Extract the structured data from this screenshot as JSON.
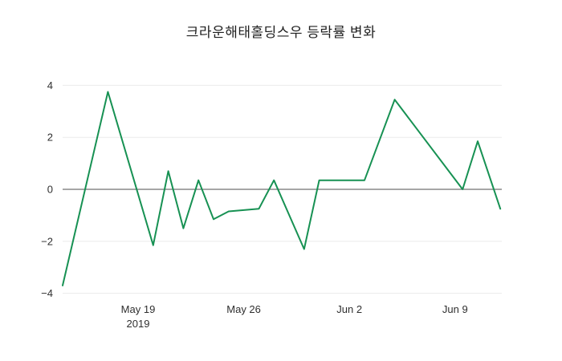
{
  "page": {
    "background": "#ffffff"
  },
  "chart_data": {
    "type": "line",
    "title": "크라운해태홀딩스우 등락률 변화",
    "legend": "none",
    "grid": "horizontal-only",
    "colors": {
      "grid": "#ebebeb",
      "zeroline": "#4d4d4d",
      "tick_text": "#2f2f2f",
      "title_text": "#1f1f1f"
    },
    "x_axis": {
      "label": "",
      "ticks": [
        {
          "pos": 5,
          "label": "May 19",
          "sublabel": "2019"
        },
        {
          "pos": 12,
          "label": "May 26",
          "sublabel": ""
        },
        {
          "pos": 19,
          "label": "Jun 2",
          "sublabel": ""
        },
        {
          "pos": 26,
          "label": "Jun 9",
          "sublabel": ""
        }
      ],
      "range_days": [
        0,
        29.1
      ]
    },
    "y_axis": {
      "label": "",
      "ticks": [
        4,
        2,
        0,
        -2,
        -4
      ],
      "range": [
        -4.2,
        4.57
      ],
      "zeroline": true
    },
    "series": [
      {
        "name": "등락률",
        "color": "#179153",
        "line_width": 2,
        "points": [
          [
            0,
            -3.7
          ],
          [
            3,
            3.75
          ],
          [
            6,
            -2.15
          ],
          [
            7,
            0.7
          ],
          [
            8,
            -1.5
          ],
          [
            9,
            0.35
          ],
          [
            10,
            -1.15
          ],
          [
            11,
            -0.85
          ],
          [
            13,
            -0.75
          ],
          [
            14,
            0.35
          ],
          [
            16,
            -2.3
          ],
          [
            17,
            0.35
          ],
          [
            20,
            0.35
          ],
          [
            22,
            3.45
          ],
          [
            26.5,
            0.0
          ],
          [
            27.5,
            1.85
          ],
          [
            29,
            -0.75
          ]
        ]
      }
    ]
  }
}
